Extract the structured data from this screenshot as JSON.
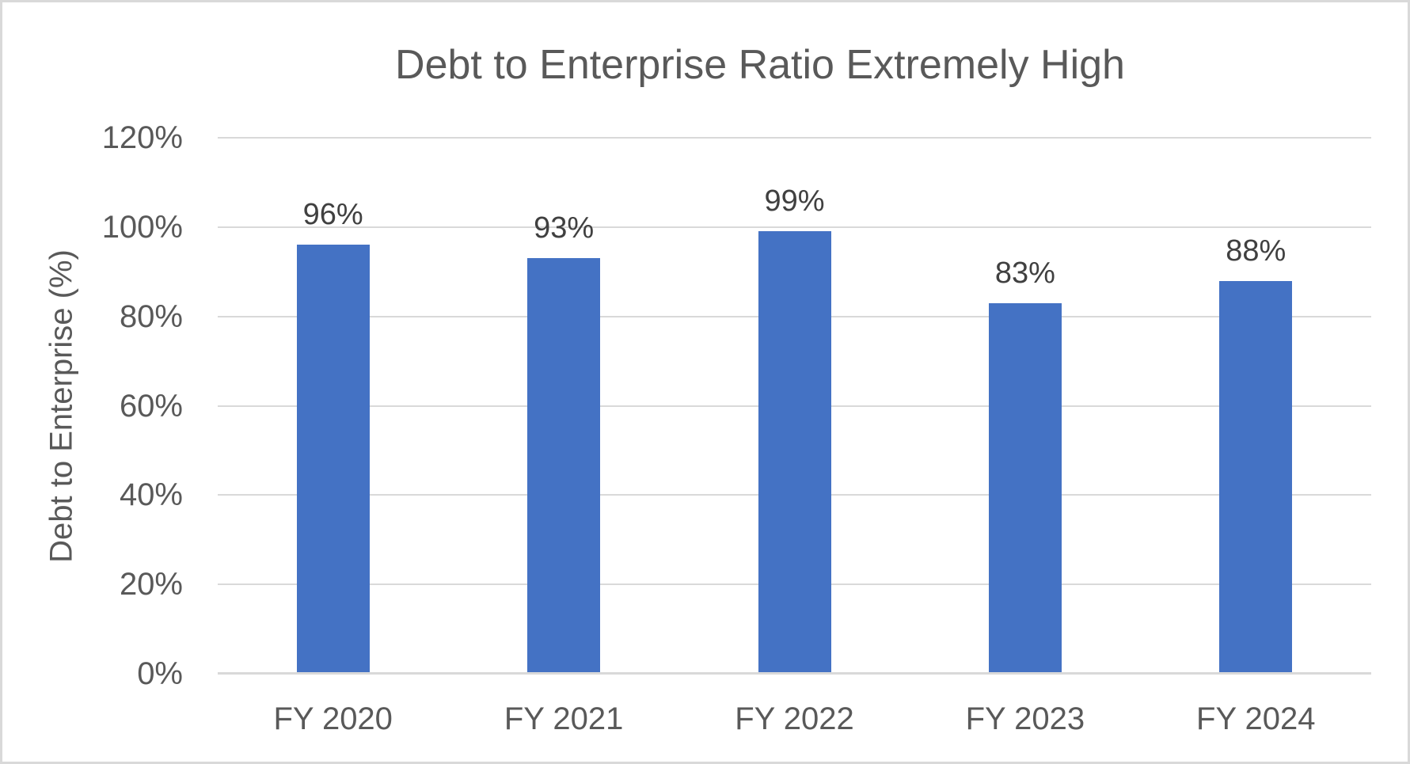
{
  "chart_data": {
    "type": "bar",
    "title": "Debt to Enterprise Ratio Extremely High",
    "xlabel": "",
    "ylabel": "Debt to Enterprise (%)",
    "categories": [
      "FY 2020",
      "FY 2021",
      "FY 2022",
      "FY 2023",
      "FY 2024"
    ],
    "values": [
      96,
      93,
      99,
      83,
      88
    ],
    "data_labels": [
      "96%",
      "93%",
      "99%",
      "83%",
      "88%"
    ],
    "yticks": [
      0,
      20,
      40,
      60,
      80,
      100,
      120
    ],
    "ytick_labels": [
      "0%",
      "20%",
      "40%",
      "60%",
      "80%",
      "100%",
      "120%"
    ],
    "ylim": [
      0,
      120
    ],
    "grid": "horizontal-major",
    "legend": "none",
    "colors": {
      "bar": "#4472C4",
      "gridline": "#D9D9D9",
      "axis_line": "#D9D9D9",
      "title_text": "#595959",
      "axis_text": "#595959",
      "data_label_text": "#404040",
      "border": "#D9D9D9",
      "background": "#FFFFFF"
    }
  }
}
